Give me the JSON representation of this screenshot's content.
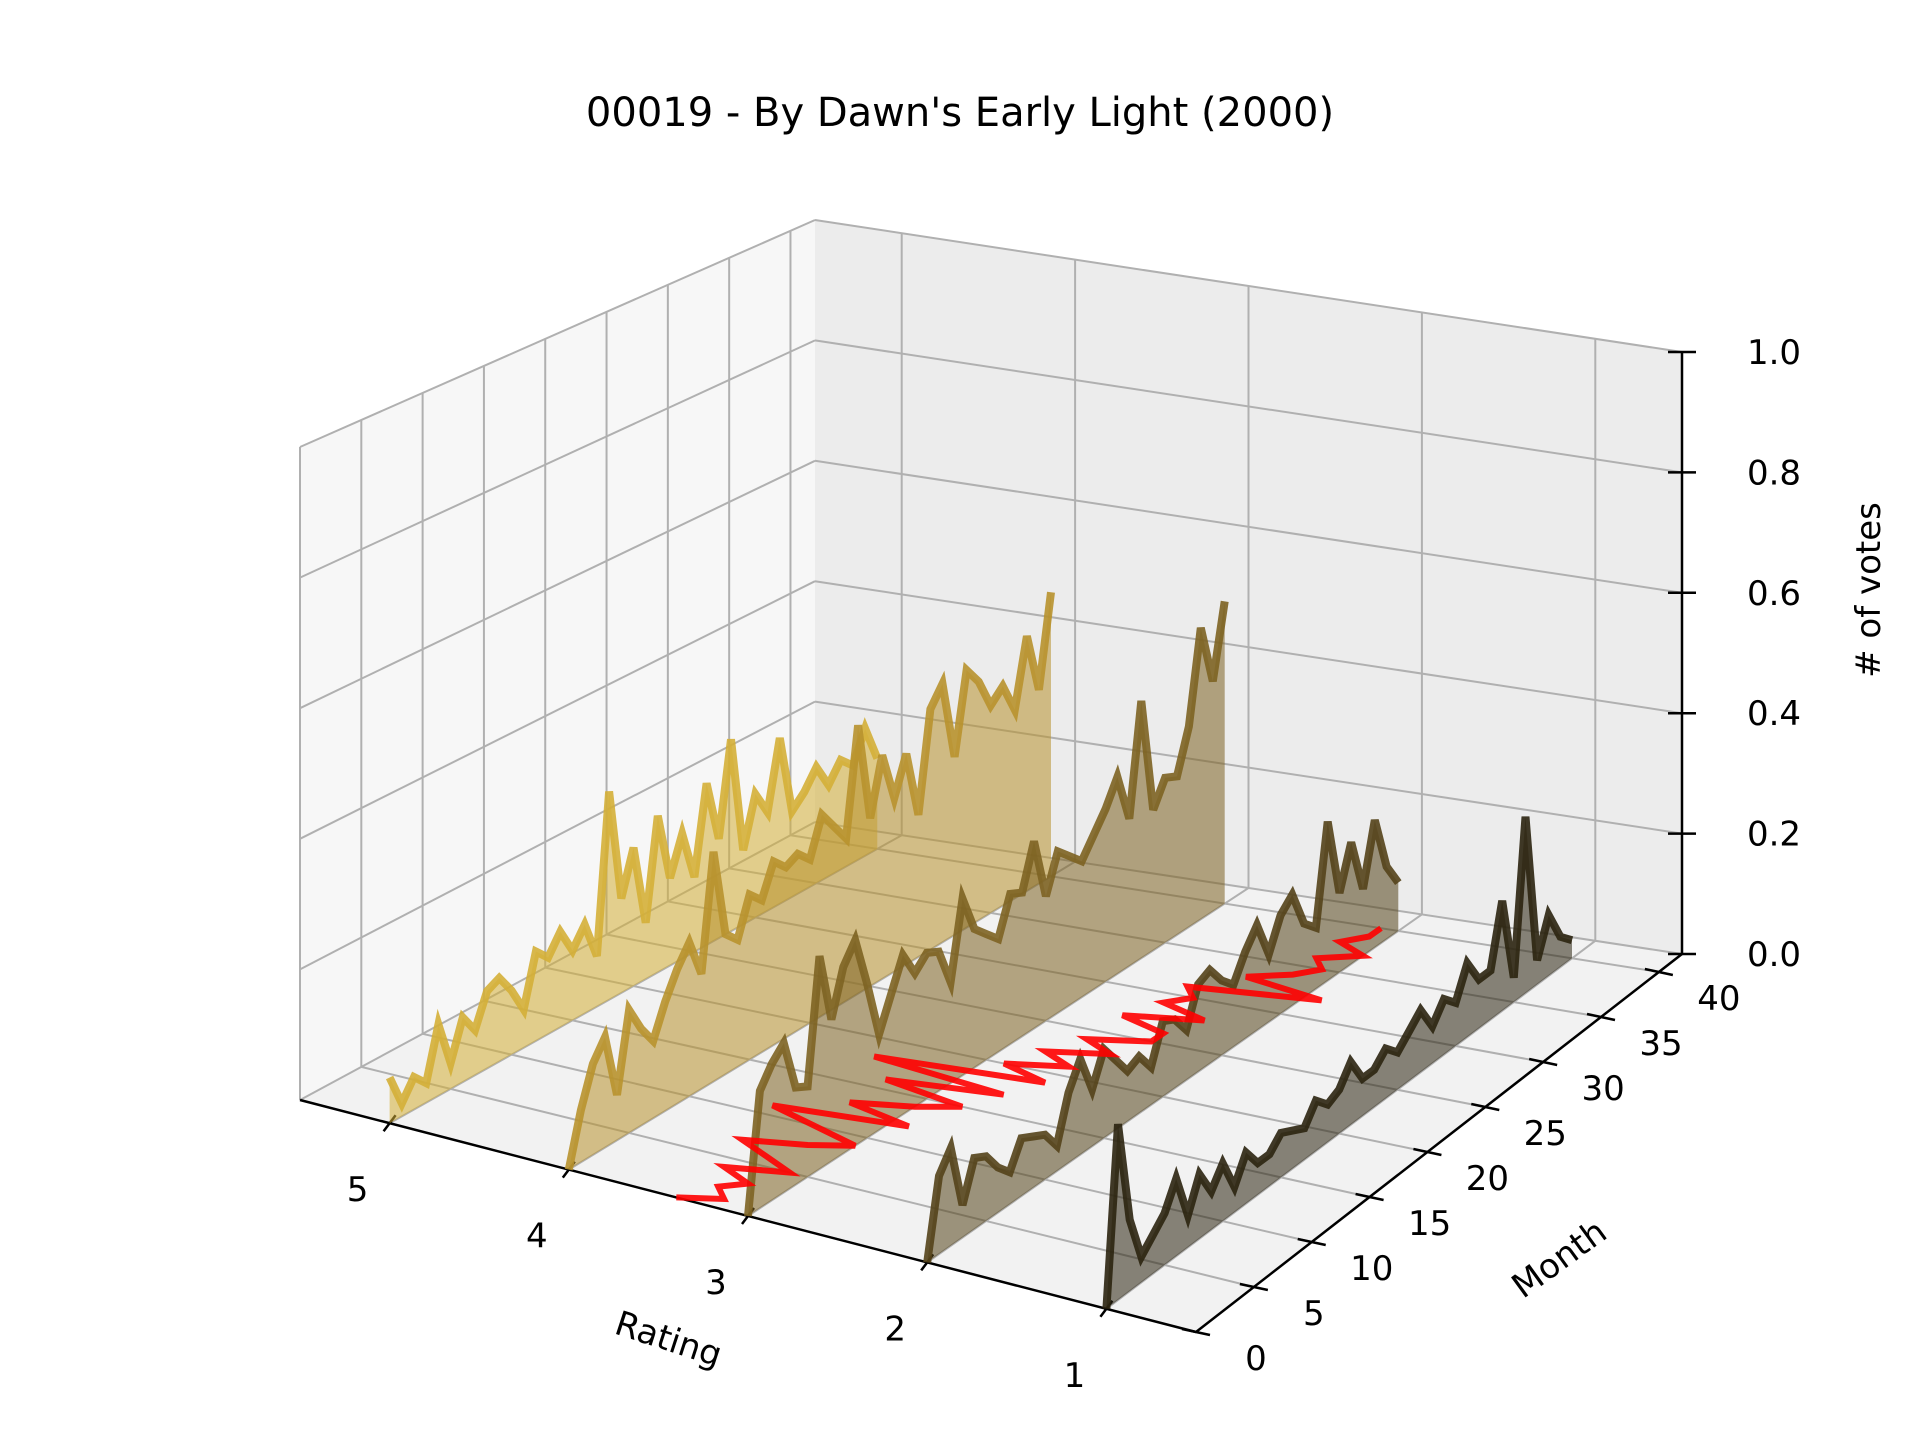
{
  "chart_data": {
    "type": "line",
    "projection": "3d",
    "title": "00019 - By Dawn's Early Light (2000)",
    "xlabel": "Rating",
    "ylabel": "Month",
    "zlabel": "# of votes",
    "x_ticks": [
      "5",
      "4",
      "3",
      "2",
      "1"
    ],
    "y_ticks": [
      "0",
      "5",
      "10",
      "15",
      "20",
      "25",
      "30",
      "35",
      "40"
    ],
    "z_ticks": [
      "0.0",
      "0.2",
      "0.4",
      "0.6",
      "0.8",
      "1.0"
    ],
    "xlim": [
      0.5,
      5.5
    ],
    "ylim": [
      0,
      42
    ],
    "zlim": [
      0,
      1
    ],
    "grid": true,
    "filled_under_lines": true,
    "series": [
      {
        "rating": 5,
        "color": "#d4af37",
        "values": [
          0.07,
          0.02,
          0.05,
          0.03,
          0.11,
          0.04,
          0.1,
          0.07,
          0.12,
          0.13,
          0.1,
          0.06,
          0.14,
          0.12,
          0.15,
          0.11,
          0.14,
          0.08,
          0.33,
          0.15,
          0.22,
          0.09,
          0.25,
          0.14,
          0.2,
          0.12,
          0.26,
          0.16,
          0.31,
          0.12,
          0.2,
          0.16,
          0.27,
          0.14,
          0.16,
          0.19,
          0.15,
          0.18,
          0.16,
          0.21,
          0.15
        ]
      },
      {
        "rating": 4,
        "color": "#b8922e",
        "values": [
          0.0,
          0.08,
          0.14,
          0.17,
          0.07,
          0.19,
          0.15,
          0.12,
          0.17,
          0.21,
          0.24,
          0.18,
          0.36,
          0.22,
          0.2,
          0.26,
          0.24,
          0.29,
          0.27,
          0.28,
          0.26,
          0.32,
          0.29,
          0.26,
          0.43,
          0.27,
          0.36,
          0.28,
          0.34,
          0.23,
          0.39,
          0.42,
          0.29,
          0.42,
          0.39,
          0.34,
          0.36,
          0.31,
          0.42,
          0.32,
          0.47
        ]
      },
      {
        "rating": 3,
        "color": "#7d6322",
        "values": [
          0.0,
          0.18,
          0.21,
          0.23,
          0.15,
          0.14,
          0.33,
          0.22,
          0.29,
          0.32,
          0.24,
          0.15,
          0.2,
          0.25,
          0.21,
          0.23,
          0.22,
          0.16,
          0.28,
          0.22,
          0.2,
          0.18,
          0.24,
          0.23,
          0.3,
          0.2,
          0.26,
          0.24,
          0.22,
          0.25,
          0.28,
          0.32,
          0.24,
          0.42,
          0.23,
          0.27,
          0.26,
          0.33,
          0.48,
          0.38,
          0.5
        ]
      },
      {
        "rating": 2,
        "color": "#544319",
        "values": [
          0.0,
          0.12,
          0.15,
          0.05,
          0.11,
          0.1,
          0.07,
          0.05,
          0.09,
          0.08,
          0.07,
          0.04,
          0.11,
          0.15,
          0.09,
          0.14,
          0.11,
          0.08,
          0.09,
          0.06,
          0.12,
          0.11,
          0.08,
          0.14,
          0.15,
          0.12,
          0.1,
          0.14,
          0.17,
          0.11,
          0.16,
          0.18,
          0.12,
          0.1,
          0.26,
          0.13,
          0.2,
          0.11,
          0.21,
          0.12,
          0.08
        ]
      },
      {
        "rating": 1,
        "color": "#2b2410",
        "values": [
          0.0,
          0.27,
          0.11,
          0.04,
          0.06,
          0.08,
          0.12,
          0.05,
          0.1,
          0.06,
          0.09,
          0.04,
          0.08,
          0.05,
          0.05,
          0.07,
          0.06,
          0.05,
          0.08,
          0.06,
          0.07,
          0.1,
          0.06,
          0.06,
          0.08,
          0.06,
          0.08,
          0.1,
          0.06,
          0.09,
          0.07,
          0.12,
          0.08,
          0.08,
          0.18,
          0.04,
          0.29,
          0.04,
          0.1,
          0.05,
          0.03
        ]
      }
    ],
    "highlight_series": [
      {
        "color": "#ff0000",
        "x": [
          3.4,
          3.2,
          3.3,
          3.2,
          3.4,
          3.1,
          3.3,
          3.5,
          3.2,
          3.0,
          3.3,
          3.6,
          2.9,
          3.3,
          3.0,
          2.8,
          3.3,
          2.7,
          3.5,
          2.6,
          2.9,
          2.6,
          2.8,
          2.5,
          2.7,
          2.4,
          2.4,
          2.7,
          2.3,
          2.6,
          2.5,
          2.6,
          1.9,
          2.4,
          2.2,
          2.1,
          2.2,
          2.0,
          2.2,
          2.1,
          2.1
        ],
        "y": [
          0,
          1,
          2,
          3,
          4,
          5,
          6,
          7,
          8,
          9,
          10,
          11,
          12,
          13,
          14,
          15,
          16,
          17,
          18,
          19,
          20,
          21,
          22,
          23,
          24,
          25,
          26,
          27,
          28,
          29,
          30,
          31,
          32,
          33,
          34,
          35,
          36,
          37,
          38,
          39,
          40
        ]
      }
    ]
  }
}
